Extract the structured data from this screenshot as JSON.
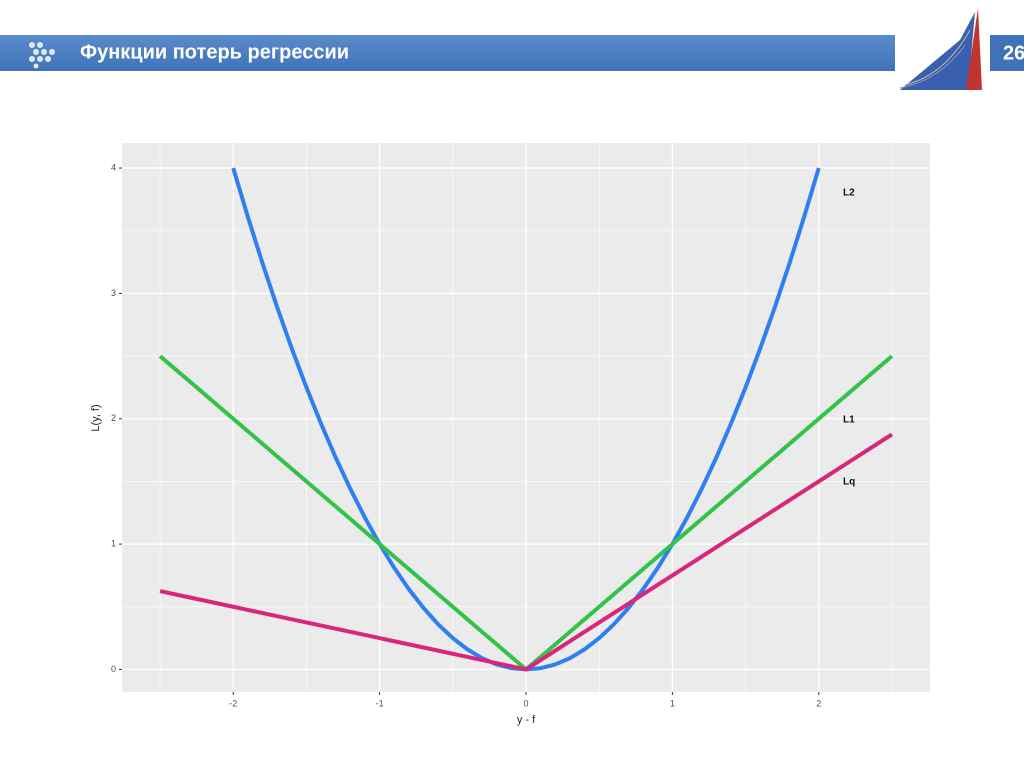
{
  "slide": {
    "title": "Функции потерь регрессии",
    "number": "26"
  },
  "chart_data": {
    "type": "line",
    "x_label": "y - f",
    "y_label": "L(y, f)",
    "x": [
      -2.5,
      -2.4,
      -2.3,
      -2.2,
      -2.1,
      -2.0,
      -1.9,
      -1.8,
      -1.7,
      -1.6,
      -1.5,
      -1.4,
      -1.3,
      -1.2,
      -1.1,
      -1.0,
      -0.9,
      -0.8,
      -0.7,
      -0.6,
      -0.5,
      -0.4,
      -0.3,
      -0.2,
      -0.1,
      0,
      0.1,
      0.2,
      0.3,
      0.4,
      0.5,
      0.6,
      0.7,
      0.8,
      0.9,
      1.0,
      1.1,
      1.2,
      1.3,
      1.4,
      1.5,
      1.6,
      1.7,
      1.8,
      1.9,
      2.0,
      2.1,
      2.2,
      2.3,
      2.4,
      2.5
    ],
    "series": [
      {
        "name": "L2",
        "color": "#2f7ff0",
        "values": [
          null,
          null,
          null,
          null,
          null,
          4,
          3.61,
          3.24,
          2.89,
          2.56,
          2.25,
          1.96,
          1.69,
          1.44,
          1.21,
          1,
          0.81,
          0.64,
          0.49,
          0.36,
          0.25,
          0.16,
          0.09,
          0.04,
          0.01,
          0,
          0.01,
          0.04,
          0.09,
          0.16,
          0.25,
          0.36,
          0.49,
          0.64,
          0.81,
          1,
          1.21,
          1.44,
          1.69,
          1.96,
          2.25,
          2.56,
          2.89,
          3.24,
          3.61,
          4,
          null,
          null,
          null,
          null,
          null
        ]
      },
      {
        "name": "L1",
        "color": "#33c24a",
        "values": [
          2.5,
          2.4,
          2.3,
          2.2,
          2.1,
          2.0,
          1.9,
          1.8,
          1.7,
          1.6,
          1.5,
          1.4,
          1.3,
          1.2,
          1.1,
          1.0,
          0.9,
          0.8,
          0.7,
          0.6,
          0.5,
          0.4,
          0.3,
          0.2,
          0.1,
          0,
          0.1,
          0.2,
          0.3,
          0.4,
          0.5,
          0.6,
          0.7,
          0.8,
          0.9,
          1.0,
          1.1,
          1.2,
          1.3,
          1.4,
          1.5,
          1.6,
          1.7,
          1.8,
          1.9,
          2.0,
          2.1,
          2.2,
          2.3,
          2.4,
          2.5
        ]
      },
      {
        "name": "Lq",
        "color": "#d9267a",
        "values": [
          0.625,
          0.6,
          0.575,
          0.55,
          0.525,
          0.5,
          0.475,
          0.45,
          0.425,
          0.4,
          0.375,
          0.35,
          0.325,
          0.3,
          0.275,
          0.25,
          0.225,
          0.2,
          0.175,
          0.15,
          0.125,
          0.1,
          0.075,
          0.05,
          0.025,
          0,
          0.075,
          0.15,
          0.225,
          0.3,
          0.375,
          0.45,
          0.525,
          0.6,
          0.675,
          0.75,
          0.825,
          0.9,
          0.975,
          1.05,
          1.125,
          1.2,
          1.275,
          1.35,
          1.425,
          1.5,
          1.575,
          1.65,
          1.725,
          1.8,
          1.875
        ]
      }
    ],
    "xlim": [
      -2.76,
      2.76
    ],
    "ylim": [
      -0.18,
      4.2
    ],
    "xticks": [
      -2,
      -1,
      0,
      1,
      2
    ],
    "yticks": [
      0,
      1,
      2,
      3,
      4
    ],
    "grid": true
  }
}
